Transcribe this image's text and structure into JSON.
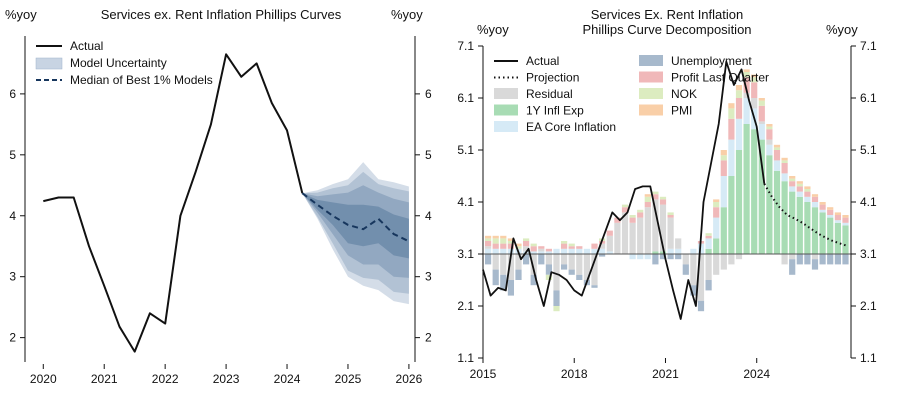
{
  "chart_data": [
    {
      "type": "line",
      "title": "Services ex. Rent Inflation Phillips Curves",
      "left_unit": "%yoy",
      "right_unit": "%yoy",
      "xlim": [
        2019.7,
        2026.1
      ],
      "ylim": [
        1.6,
        6.95
      ],
      "x_ticks": [
        2020,
        2021,
        2022,
        2023,
        2024,
        2025,
        2026
      ],
      "y_ticks": [
        2,
        3,
        4,
        5,
        6
      ],
      "legend": {
        "position": "top-left",
        "actual": "Actual",
        "uncertainty": "Model Uncertainty",
        "median": "Median of Best 1% Models"
      },
      "colors": {
        "actual": "#111111",
        "band": "#2f5b88",
        "median": "#17365d"
      },
      "actual": [
        [
          2020.0,
          4.24
        ],
        [
          2020.25,
          4.3
        ],
        [
          2020.5,
          4.3
        ],
        [
          2020.75,
          3.5
        ],
        [
          2021.0,
          2.85
        ],
        [
          2021.25,
          2.18
        ],
        [
          2021.5,
          1.77
        ],
        [
          2021.75,
          2.4
        ],
        [
          2022.0,
          2.23
        ],
        [
          2022.25,
          4.0
        ],
        [
          2022.5,
          4.72
        ],
        [
          2022.75,
          5.5
        ],
        [
          2023.0,
          6.65
        ],
        [
          2023.25,
          6.28
        ],
        [
          2023.5,
          6.5
        ],
        [
          2023.75,
          5.85
        ],
        [
          2024.0,
          5.4
        ],
        [
          2024.25,
          4.37
        ]
      ],
      "median": [
        [
          2024.25,
          4.37
        ],
        [
          2024.5,
          4.18
        ],
        [
          2024.75,
          4.0
        ],
        [
          2025.0,
          3.85
        ],
        [
          2025.25,
          3.78
        ],
        [
          2025.5,
          3.95
        ],
        [
          2025.75,
          3.7
        ],
        [
          2026.0,
          3.58
        ]
      ],
      "bands": [
        {
          "lower": [
            4.37,
            3.95,
            3.45,
            3.0,
            2.85,
            2.78,
            2.6,
            2.55
          ],
          "upper": [
            4.37,
            4.42,
            4.52,
            4.6,
            4.88,
            4.6,
            4.55,
            4.48
          ]
        },
        {
          "lower": [
            4.37,
            3.98,
            3.55,
            3.1,
            2.98,
            2.95,
            2.75,
            2.72
          ],
          "upper": [
            4.37,
            4.38,
            4.45,
            4.5,
            4.72,
            4.52,
            4.45,
            4.4
          ]
        },
        {
          "lower": [
            4.37,
            4.05,
            3.7,
            3.35,
            3.2,
            3.2,
            3.0,
            2.98
          ],
          "upper": [
            4.37,
            4.32,
            4.35,
            4.38,
            4.5,
            4.38,
            4.28,
            4.22
          ]
        },
        {
          "lower": [
            4.37,
            4.1,
            3.85,
            3.55,
            3.5,
            3.55,
            3.35,
            3.3
          ],
          "upper": [
            4.37,
            4.26,
            4.22,
            4.18,
            4.18,
            4.15,
            4.02,
            3.95
          ]
        }
      ]
    },
    {
      "type": "bar",
      "stacked": true,
      "title": "Services Ex. Rent Inflation",
      "subtitle": "Phillips Curve Decomposition",
      "left_unit": "%yoy",
      "right_unit": "%yoy",
      "baseline": 3.1,
      "xlim": [
        2015.0,
        2027.1
      ],
      "ylim": [
        1.1,
        7.1
      ],
      "x_ticks": [
        2015,
        2018,
        2021,
        2024
      ],
      "y_ticks": [
        1.1,
        2.1,
        3.1,
        4.1,
        5.1,
        6.1,
        7.1
      ],
      "legend": [
        {
          "key": "actual",
          "label": "Actual",
          "kind": "line",
          "color": "#111111"
        },
        {
          "key": "projection",
          "label": "Projection",
          "kind": "dotted",
          "color": "#111111"
        },
        {
          "key": "residual",
          "label": "Residual",
          "kind": "box",
          "color": "#d9d9d9"
        },
        {
          "key": "infl_exp",
          "label": "1Y Infl Exp",
          "kind": "box",
          "color": "#a8dcb4"
        },
        {
          "key": "ea_core",
          "label": "EA Core Inflation",
          "kind": "box",
          "color": "#d6eaf6"
        },
        {
          "key": "unemployment",
          "label": "Unemployment",
          "kind": "box",
          "color": "#a7b9cc"
        },
        {
          "key": "profit",
          "label": "Profit Last Quarter",
          "kind": "box",
          "color": "#f0b8b9"
        },
        {
          "key": "nok",
          "label": "NOK",
          "kind": "box",
          "color": "#dcecc0"
        },
        {
          "key": "pmi",
          "label": "PMI",
          "kind": "box",
          "color": "#f9cfa8"
        }
      ],
      "components": {
        "residual": [
          0,
          0,
          0,
          0,
          0,
          0,
          0,
          0,
          0,
          0,
          0,
          0,
          0,
          0,
          0,
          0,
          0,
          0,
          0,
          0,
          0,
          0,
          0,
          0,
          0,
          0,
          0,
          0,
          0,
          0,
          0,
          0,
          0,
          0,
          0,
          0,
          0,
          0,
          0,
          0,
          0,
          0,
          0,
          0,
          0,
          0,
          0,
          0,
          0,
          0,
          0,
          0,
          0,
          0,
          0,
          0,
          0,
          0,
          0,
          0,
          0,
          0,
          0,
          0,
          0,
          0,
          0,
          0,
          0,
          0,
          0,
          0,
          0,
          0,
          0,
          0,
          0,
          0,
          0,
          0,
          0,
          0,
          0,
          0,
          0,
          0,
          0,
          0,
          0,
          0,
          0,
          0,
          0,
          0,
          0,
          0,
          0,
          0,
          0,
          0,
          0,
          0,
          0,
          0,
          0,
          0,
          0,
          0,
          0,
          0,
          0,
          0,
          0,
          0,
          0,
          0,
          0,
          0,
          0,
          0,
          0,
          0,
          0,
          0,
          0,
          0,
          0,
          0,
          0,
          0,
          0,
          0,
          0,
          0,
          0,
          0,
          0,
          0,
          0,
          0,
          0,
          0,
          0,
          0,
          0
        ],
        "infl_exp": [],
        "ea_core": [],
        "unemployment": [],
        "profit": [],
        "nok": [],
        "pmi": []
      },
      "quarters_start": 2015.0,
      "bar_series": {
        "residual": [
          0.05,
          -0.3,
          -0.4,
          -0.5,
          -0.3,
          0.1,
          -0.4,
          0.05,
          -0.2,
          -0.7,
          -0.2,
          -0.3,
          -0.4,
          -0.5,
          -0.6,
          0.1,
          0.3,
          0.6,
          0.8,
          0.6,
          0.7,
          0.9,
          1.0,
          0.9,
          0.6,
          0.2,
          -0.2,
          -0.6,
          -0.9,
          -0.5,
          -0.4,
          -0.3,
          -0.2,
          -0.1,
          0.1,
          0.2,
          0.05,
          0.1,
          0.0,
          -0.2,
          -0.1,
          0.0,
          0.0,
          -0.1,
          0.0,
          0.0,
          0.0,
          0.0
        ],
        "infl_exp": [
          0.0,
          0.0,
          0.0,
          0.0,
          0.0,
          0.0,
          0.0,
          0.0,
          0.0,
          0.0,
          0.0,
          0.0,
          0.0,
          0.0,
          0.0,
          0.0,
          0.0,
          0.0,
          0.0,
          0.0,
          0.0,
          0.0,
          0.05,
          0.05,
          0.0,
          0.0,
          0.0,
          0.0,
          0.0,
          0.1,
          0.3,
          0.9,
          1.5,
          2.0,
          2.5,
          2.4,
          2.2,
          1.9,
          1.6,
          1.4,
          1.2,
          1.1,
          1.0,
          0.9,
          0.8,
          0.7,
          0.6,
          0.55
        ],
        "ea_core": [
          0.1,
          0.1,
          0.1,
          0.1,
          0.1,
          0.05,
          0.05,
          0.05,
          0.05,
          0.1,
          0.1,
          0.1,
          0.1,
          0.1,
          0.1,
          0.1,
          0.05,
          0.0,
          0.0,
          -0.1,
          -0.1,
          -0.1,
          0.0,
          0.0,
          0.1,
          0.1,
          0.0,
          0.1,
          0.2,
          0.2,
          0.4,
          0.6,
          0.7,
          0.6,
          0.5,
          0.4,
          0.3,
          0.2,
          0.2,
          0.15,
          0.1,
          0.1,
          0.1,
          0.1,
          0.05,
          0.05,
          0.05,
          0.05
        ],
        "unemployment": [
          -0.2,
          -0.3,
          -0.3,
          -0.3,
          -0.2,
          -0.2,
          -0.2,
          -0.2,
          -0.2,
          -0.3,
          -0.1,
          -0.1,
          -0.1,
          -0.1,
          -0.05,
          -0.05,
          0.0,
          0.0,
          0.0,
          0.0,
          0.0,
          0.0,
          -0.2,
          -0.1,
          -0.1,
          -0.1,
          -0.2,
          -0.2,
          -0.2,
          -0.2,
          0.0,
          0.0,
          0.0,
          0.0,
          0.0,
          0.0,
          0.0,
          0.0,
          0.0,
          0.0,
          -0.3,
          -0.2,
          -0.2,
          -0.2,
          -0.2,
          -0.2,
          -0.2,
          -0.2
        ],
        "profit": [
          0.1,
          0.1,
          0.1,
          0.1,
          0.0,
          0.1,
          0.1,
          0.05,
          0.05,
          0.0,
          0.1,
          0.05,
          0.05,
          0.0,
          0.1,
          0.05,
          0.1,
          0.1,
          0.1,
          0.1,
          0.1,
          0.1,
          0.1,
          0.1,
          0.05,
          0.0,
          0.0,
          0.0,
          0.05,
          0.05,
          0.2,
          0.3,
          0.4,
          0.4,
          0.3,
          0.3,
          0.3,
          0.2,
          0.2,
          0.2,
          0.1,
          0.1,
          0.1,
          0.1,
          0.1,
          0.1,
          0.1,
          0.1
        ],
        "nok": [
          0.05,
          0.1,
          0.1,
          0.05,
          0.05,
          0.05,
          0.05,
          0.0,
          -0.1,
          -0.1,
          0.05,
          0.05,
          0.0,
          0.0,
          0.0,
          0.05,
          0.0,
          0.0,
          0.05,
          0.05,
          0.05,
          0.1,
          0.05,
          0.05,
          0.05,
          0.0,
          0.0,
          0.0,
          0.0,
          0.05,
          0.1,
          0.1,
          0.2,
          0.15,
          0.1,
          0.1,
          0.1,
          0.05,
          0.05,
          0.05,
          0.05,
          0.05,
          0.05,
          0.0,
          0.0,
          0.0,
          0.0,
          0.0
        ],
        "pmi": [
          0.05,
          0.05,
          0.05,
          0.05,
          0.05,
          0.0,
          0.0,
          0.0,
          0.0,
          0.0,
          0.0,
          0.0,
          0.0,
          0.0,
          0.0,
          0.0,
          0.0,
          0.0,
          0.0,
          0.0,
          0.0,
          0.05,
          0.0,
          0.0,
          0.0,
          0.0,
          0.0,
          0.0,
          0.0,
          0.0,
          0.05,
          0.1,
          0.1,
          0.1,
          0.05,
          0.05,
          0.05,
          0.05,
          0.05,
          0.05,
          0.05,
          0.05,
          0.05,
          0.05,
          0.05,
          0.05,
          0.05,
          0.05
        ]
      },
      "actual": [
        [
          2015.0,
          2.8
        ],
        [
          2015.25,
          2.3
        ],
        [
          2015.5,
          2.45
        ],
        [
          2015.75,
          2.4
        ],
        [
          2016.0,
          3.4
        ],
        [
          2016.25,
          3.0
        ],
        [
          2016.5,
          3.2
        ],
        [
          2016.75,
          2.6
        ],
        [
          2017.0,
          2.1
        ],
        [
          2017.25,
          2.75
        ],
        [
          2017.5,
          2.7
        ],
        [
          2017.75,
          2.6
        ],
        [
          2018.0,
          2.4
        ],
        [
          2018.25,
          2.3
        ],
        [
          2018.5,
          2.7
        ],
        [
          2018.75,
          3.1
        ],
        [
          2019.0,
          3.5
        ],
        [
          2019.25,
          3.9
        ],
        [
          2019.5,
          3.75
        ],
        [
          2019.75,
          3.9
        ],
        [
          2020.0,
          4.35
        ],
        [
          2020.25,
          4.4
        ],
        [
          2020.5,
          4.4
        ],
        [
          2020.75,
          3.7
        ],
        [
          2021.0,
          3.0
        ],
        [
          2021.25,
          2.4
        ],
        [
          2021.5,
          1.85
        ],
        [
          2021.75,
          2.6
        ],
        [
          2022.0,
          2.1
        ],
        [
          2022.25,
          4.1
        ],
        [
          2022.5,
          4.85
        ],
        [
          2022.75,
          5.6
        ],
        [
          2023.0,
          6.8
        ],
        [
          2023.25,
          6.35
        ],
        [
          2023.5,
          6.65
        ],
        [
          2023.75,
          6.05
        ],
        [
          2024.0,
          5.55
        ],
        [
          2024.25,
          4.45
        ]
      ],
      "projection": [
        [
          2024.25,
          4.45
        ],
        [
          2024.5,
          4.2
        ],
        [
          2024.75,
          4.0
        ],
        [
          2025.0,
          3.85
        ],
        [
          2025.25,
          3.78
        ],
        [
          2025.5,
          3.7
        ],
        [
          2025.75,
          3.6
        ],
        [
          2026.0,
          3.5
        ],
        [
          2026.25,
          3.42
        ],
        [
          2026.5,
          3.35
        ],
        [
          2026.75,
          3.3
        ],
        [
          2027.0,
          3.25
        ]
      ]
    }
  ]
}
